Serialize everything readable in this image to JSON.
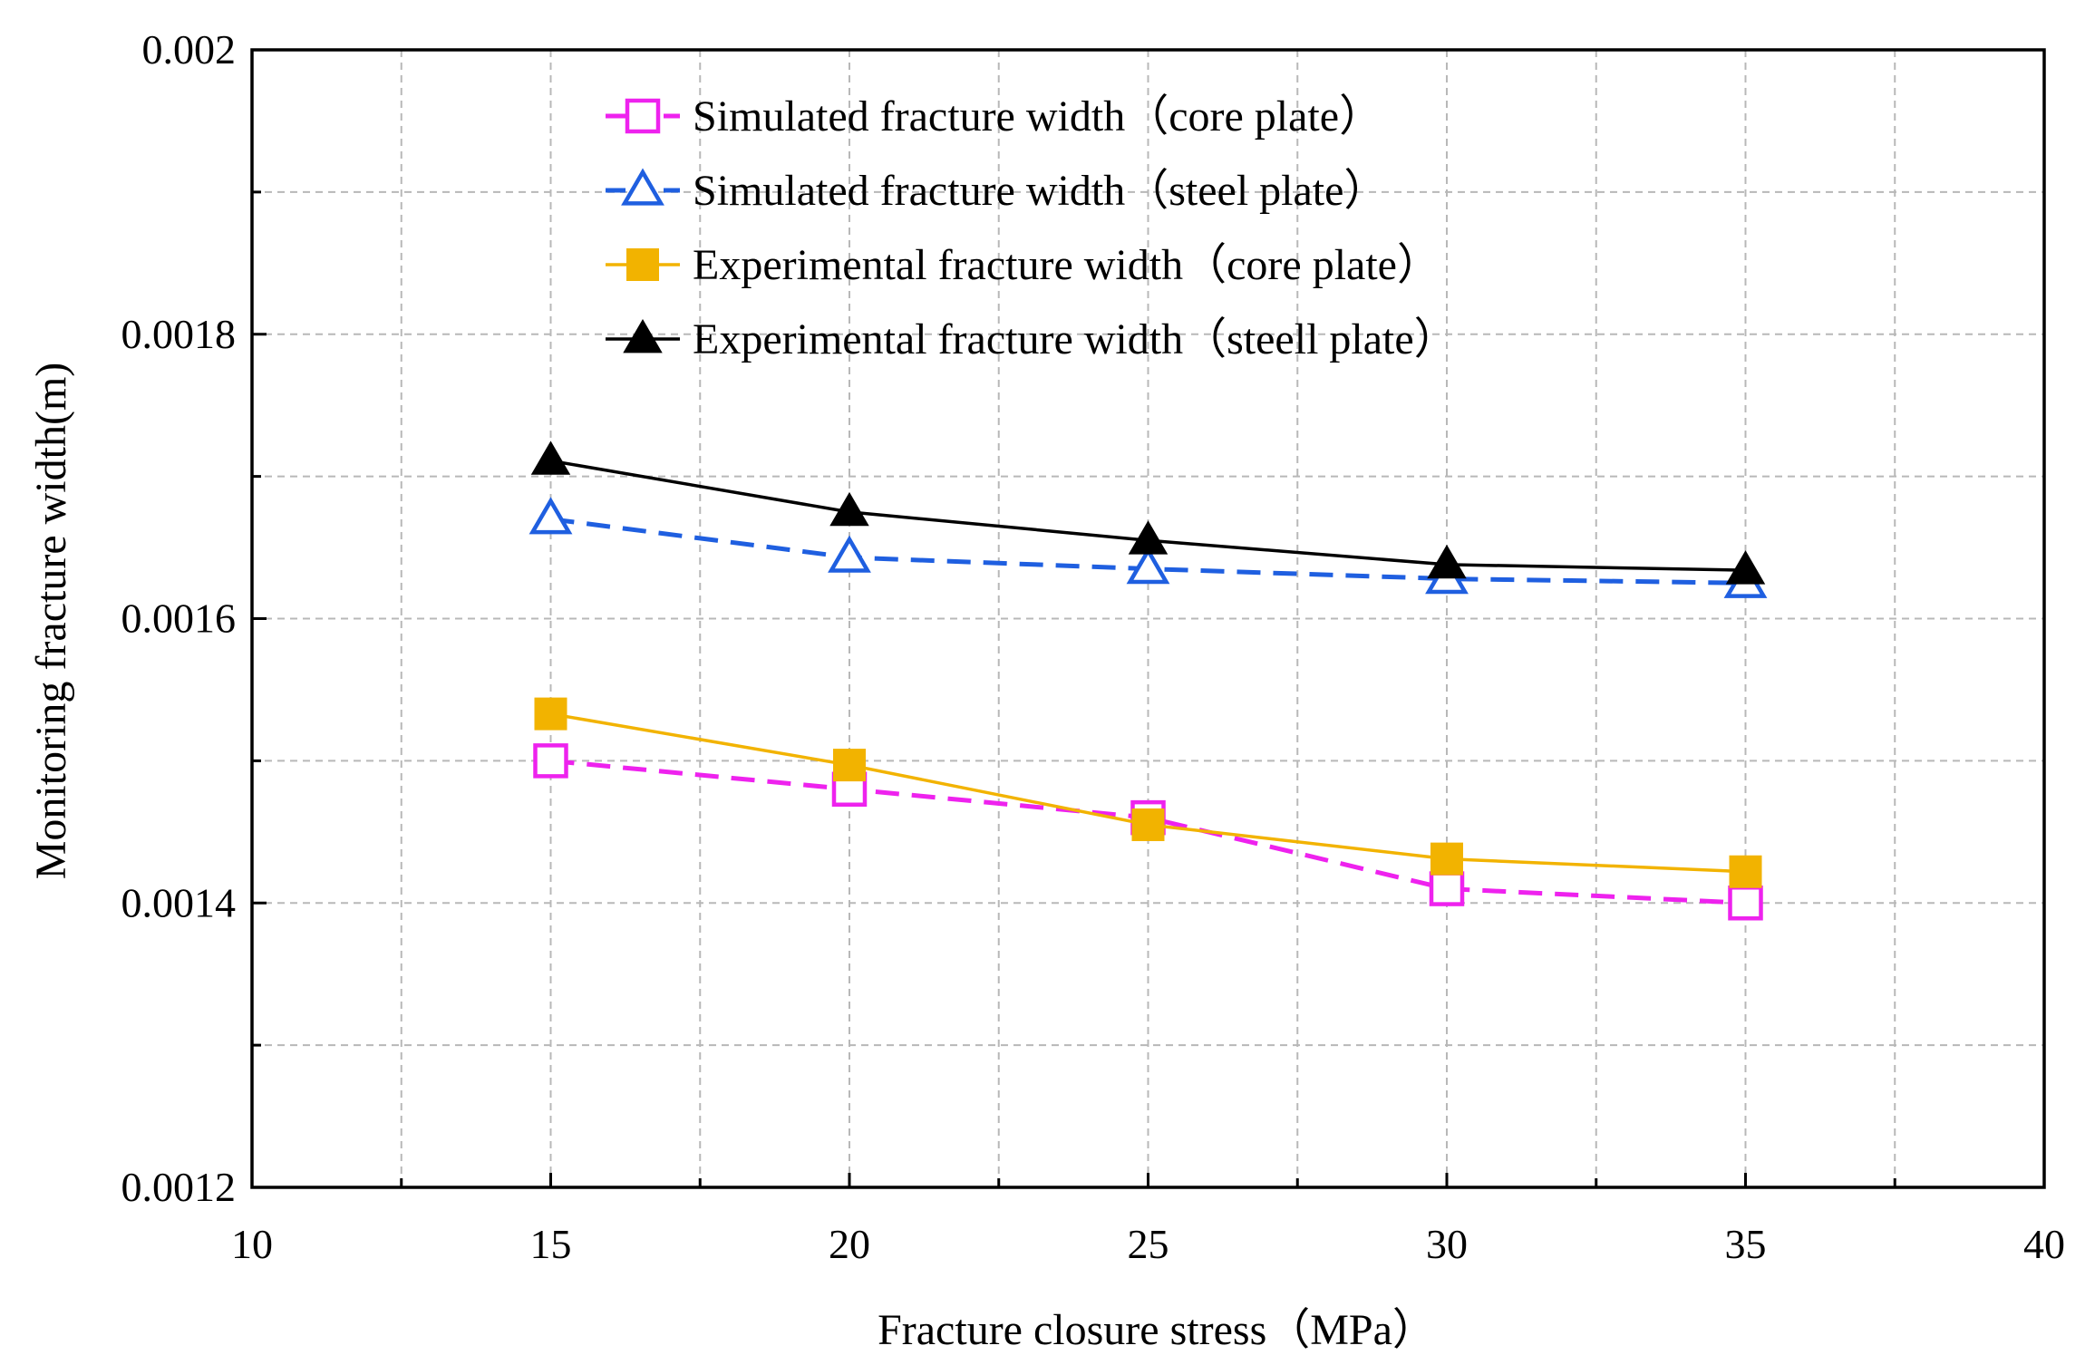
{
  "chart_data": {
    "type": "line",
    "title": "",
    "xlabel": "Fracture closure stress（MPa）",
    "ylabel": "Monitoring fracture width(m)",
    "xlim": [
      10,
      40
    ],
    "ylim": [
      0.0012,
      0.002
    ],
    "x_ticks": [
      10,
      15,
      20,
      25,
      30,
      35,
      40
    ],
    "x_tick_labels": [
      "10",
      "15",
      "20",
      "25",
      "30",
      "35",
      "40"
    ],
    "y_ticks": [
      0.0012,
      0.0014,
      0.0016,
      0.0018,
      0.002
    ],
    "y_tick_labels": [
      "0.0012",
      "0.0014",
      "0.0016",
      "0.0018",
      "0.002"
    ],
    "grid": true,
    "legend_position": "top-center",
    "x": [
      15,
      20,
      25,
      30,
      35
    ],
    "series": [
      {
        "name": "Simulated fracture width（core plate）",
        "values": [
          0.0015,
          0.00148,
          0.00146,
          0.00141,
          0.0014
        ],
        "color": "#ee22ee",
        "line": "dashed",
        "marker": "square-open"
      },
      {
        "name": "Simulated fracture width（steel plate）",
        "values": [
          0.00167,
          0.001643,
          0.001635,
          0.001628,
          0.001625
        ],
        "color": "#1f5fe0",
        "line": "dashed",
        "marker": "triangle-open"
      },
      {
        "name": "Experimental fracture width（core plate）",
        "values": [
          0.001533,
          0.001497,
          0.001455,
          0.001431,
          0.001422
        ],
        "color": "#f2b300",
        "line": "solid",
        "marker": "square-filled"
      },
      {
        "name": "Experimental fracture width（steell plate）",
        "values": [
          0.001711,
          0.001675,
          0.001655,
          0.001638,
          0.001634
        ],
        "color": "#000000",
        "line": "solid",
        "marker": "triangle-filled"
      }
    ]
  }
}
